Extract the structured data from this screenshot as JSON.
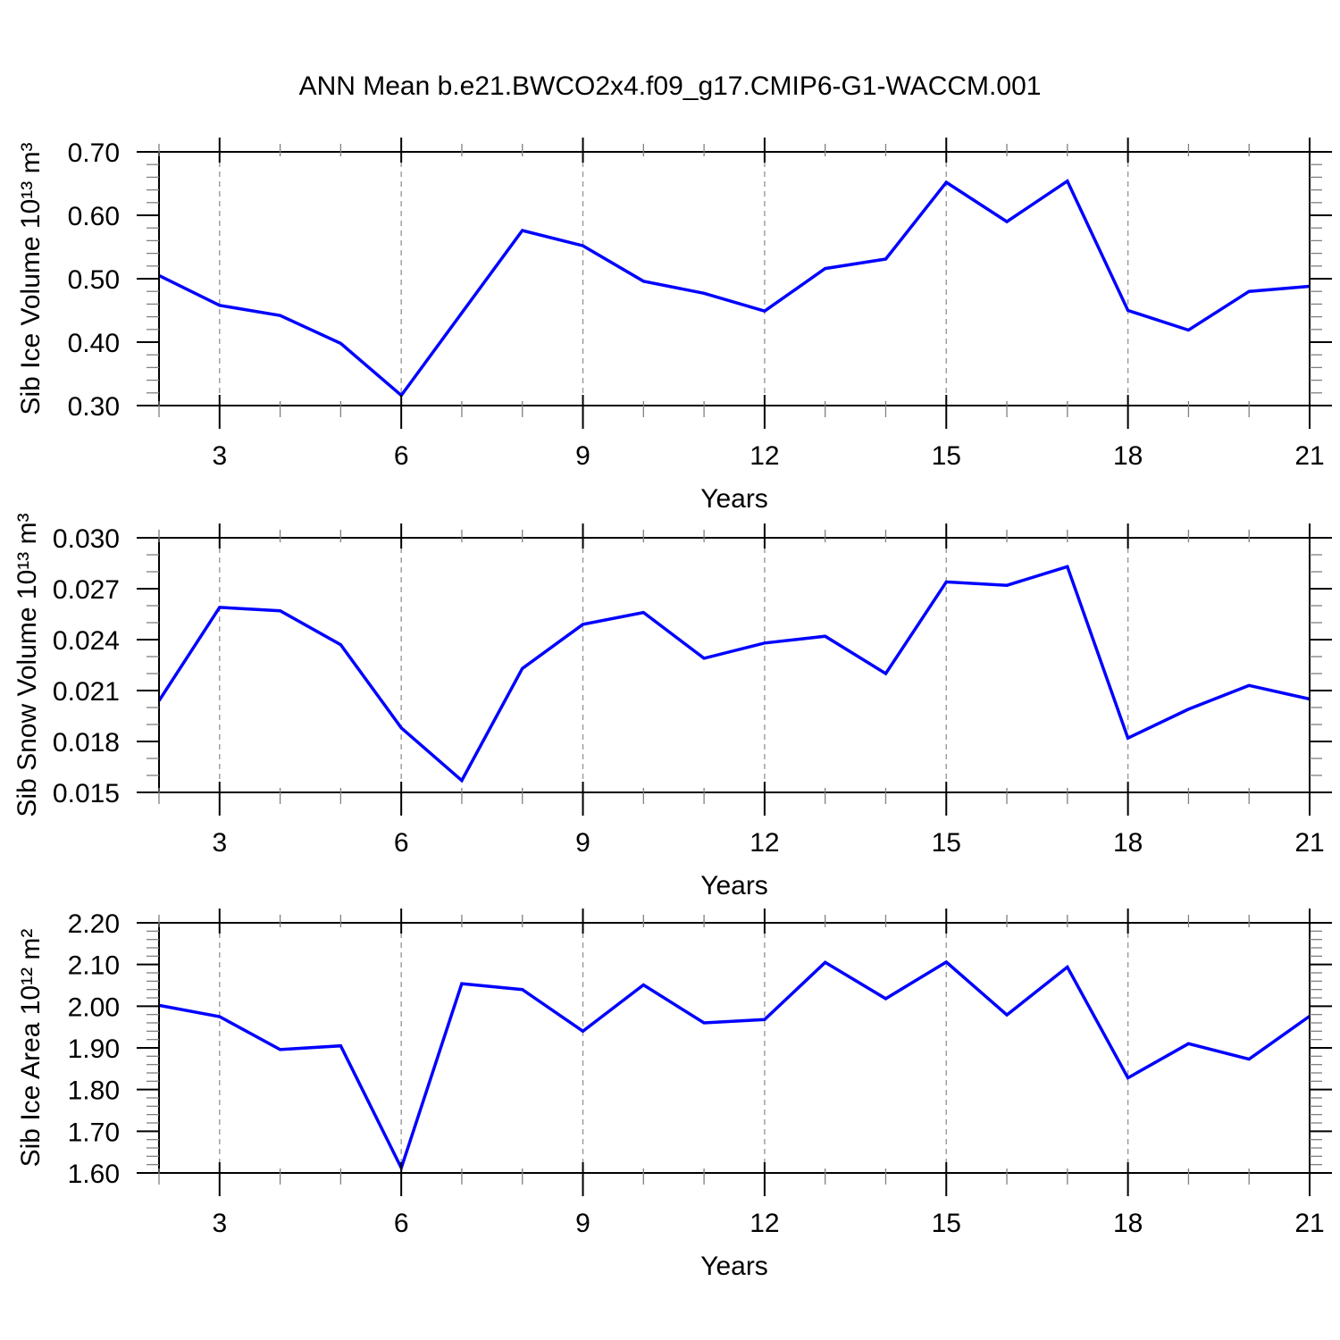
{
  "title": "ANN Mean b.e21.BWCO2x4.f09_g17.CMIP6-G1-WACCM.001",
  "colors": {
    "line": "#0000FF",
    "frame": "#000000",
    "grid": "#999999",
    "minor_tick": "#808080",
    "text": "#000000",
    "background": "#FFFFFF"
  },
  "chart_data": [
    {
      "type": "line",
      "ylabel": "Sib Ice Volume 10¹³ m³",
      "xlabel": "Years",
      "x": [
        2,
        3,
        4,
        5,
        6,
        7,
        8,
        9,
        10,
        11,
        12,
        13,
        14,
        15,
        16,
        17,
        18,
        19,
        20,
        21
      ],
      "values": [
        0.505,
        0.458,
        0.442,
        0.398,
        0.316,
        0.446,
        0.576,
        0.552,
        0.496,
        0.477,
        0.449,
        0.516,
        0.531,
        0.652,
        0.59,
        0.654,
        0.45,
        0.419,
        0.48,
        0.488
      ],
      "xlim": [
        2,
        21
      ],
      "ylim": [
        0.3,
        0.7
      ],
      "ytick_vals": [
        0.7,
        0.6,
        0.5,
        0.4,
        0.3
      ],
      "ytick_labels": [
        "0.70",
        "0.60",
        "0.50",
        "0.40",
        "0.30"
      ],
      "yminor_step": 0.02,
      "xtick_vals": [
        3,
        6,
        9,
        12,
        15,
        18,
        21
      ],
      "xtick_labels": [
        "3",
        "6",
        "9",
        "12",
        "15",
        "18",
        "21"
      ],
      "xminor_step": 1,
      "grid_x": [
        3,
        6,
        9,
        12,
        15,
        18
      ],
      "grid": "vertical-dashed",
      "legend": "none"
    },
    {
      "type": "line",
      "ylabel": "Sib Snow Volume 10¹³ m³",
      "xlabel": "Years",
      "x": [
        2,
        3,
        4,
        5,
        6,
        7,
        8,
        9,
        10,
        11,
        12,
        13,
        14,
        15,
        16,
        17,
        18,
        19,
        20,
        21
      ],
      "values": [
        0.0204,
        0.0259,
        0.0257,
        0.0237,
        0.0188,
        0.0157,
        0.0223,
        0.0249,
        0.0256,
        0.0229,
        0.0238,
        0.0242,
        0.022,
        0.0274,
        0.0272,
        0.0283,
        0.0182,
        0.0199,
        0.0213,
        0.0205
      ],
      "xlim": [
        2,
        21
      ],
      "ylim": [
        0.015,
        0.03
      ],
      "ytick_vals": [
        0.03,
        0.027,
        0.024,
        0.021,
        0.018,
        0.015
      ],
      "ytick_labels": [
        "0.030",
        "0.027",
        "0.024",
        "0.021",
        "0.018",
        "0.015"
      ],
      "yminor_step": 0.001,
      "xtick_vals": [
        3,
        6,
        9,
        12,
        15,
        18,
        21
      ],
      "xtick_labels": [
        "3",
        "6",
        "9",
        "12",
        "15",
        "18",
        "21"
      ],
      "xminor_step": 1,
      "grid_x": [
        3,
        6,
        9,
        12,
        15,
        18
      ],
      "grid": "vertical-dashed",
      "legend": "none"
    },
    {
      "type": "line",
      "ylabel": "Sib Ice Area 10¹² m²",
      "xlabel": "Years",
      "x": [
        2,
        3,
        4,
        5,
        6,
        7,
        8,
        9,
        10,
        11,
        12,
        13,
        14,
        15,
        16,
        17,
        18,
        19,
        20,
        21
      ],
      "values": [
        2.002,
        1.975,
        1.896,
        1.905,
        1.612,
        2.054,
        2.04,
        1.94,
        2.051,
        1.96,
        1.968,
        2.105,
        2.018,
        2.106,
        1.979,
        2.094,
        1.828,
        1.91,
        1.873,
        1.976
      ],
      "xlim": [
        2,
        21
      ],
      "ylim": [
        1.6,
        2.2
      ],
      "ytick_vals": [
        2.2,
        2.1,
        2.0,
        1.9,
        1.8,
        1.7,
        1.6
      ],
      "ytick_labels": [
        "2.20",
        "2.10",
        "2.00",
        "1.90",
        "1.80",
        "1.70",
        "1.60"
      ],
      "yminor_step": 0.02,
      "xtick_vals": [
        3,
        6,
        9,
        12,
        15,
        18,
        21
      ],
      "xtick_labels": [
        "3",
        "6",
        "9",
        "12",
        "15",
        "18",
        "21"
      ],
      "xminor_step": 1,
      "grid_x": [
        3,
        6,
        9,
        12,
        15,
        18
      ],
      "grid": "vertical-dashed",
      "legend": "none"
    }
  ]
}
